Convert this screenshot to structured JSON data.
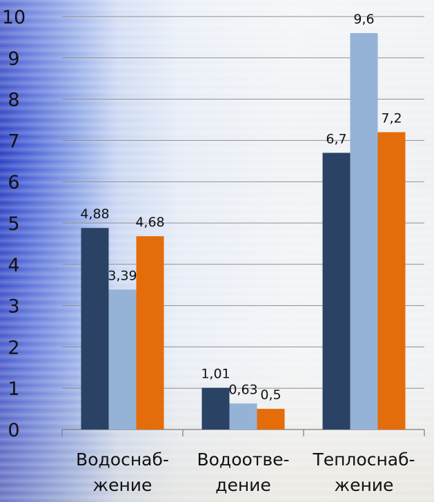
{
  "chart_data": {
    "type": "bar",
    "categories": [
      [
        "Водоснаб-",
        "жение"
      ],
      [
        "Водоотве-",
        "дение"
      ],
      [
        "Теплоснаб-",
        "жение"
      ]
    ],
    "series": [
      {
        "values": [
          4.88,
          1.01,
          6.7
        ],
        "labels": [
          "4,88",
          "1,01",
          "6,7"
        ],
        "color": "#2a4264"
      },
      {
        "values": [
          3.39,
          0.63,
          9.6
        ],
        "labels": [
          "3,39",
          "0,63",
          "9,6"
        ],
        "color": "#95b3d7"
      },
      {
        "values": [
          4.68,
          0.5,
          7.2
        ],
        "labels": [
          "4,68",
          "0,5",
          "7,2"
        ],
        "color": "#e46c0a"
      }
    ],
    "yticks": [
      "0",
      "1",
      "2",
      "3",
      "4",
      "5",
      "6",
      "7",
      "8",
      "9",
      "10"
    ],
    "ylim": [
      0,
      10
    ],
    "grid": true
  }
}
